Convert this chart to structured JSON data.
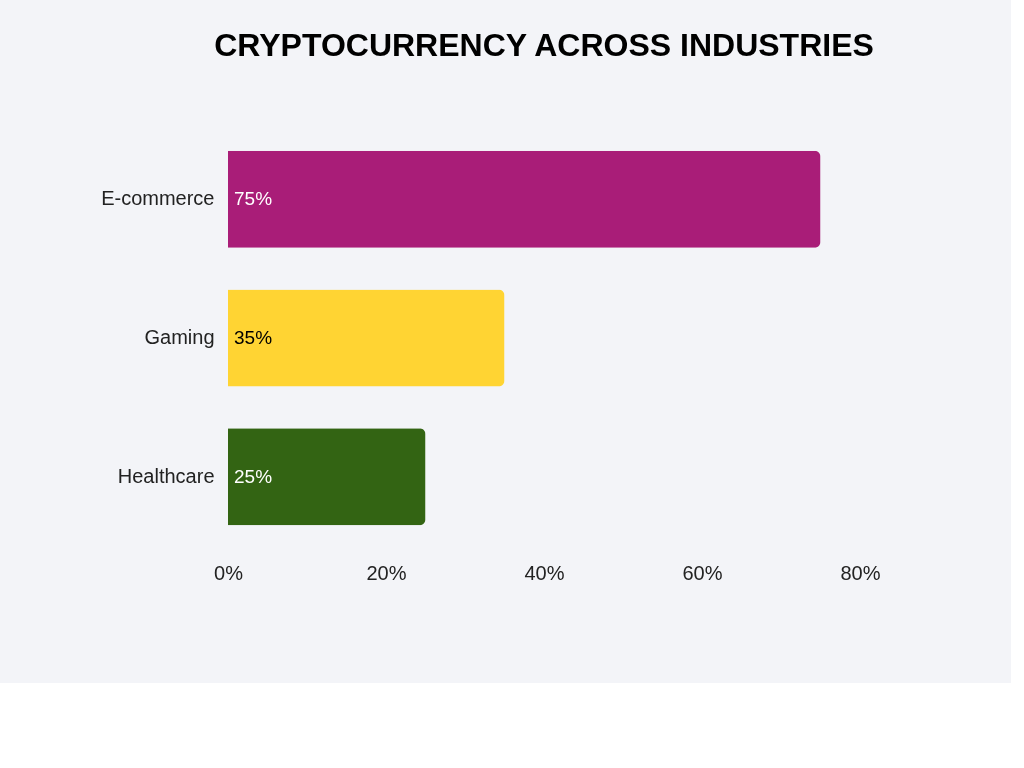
{
  "chart_data": {
    "type": "bar",
    "orientation": "horizontal",
    "title": "CRYPTOCURRENCY ACROSS INDUSTRIES",
    "categories": [
      "E-commerce",
      "Gaming",
      "Healthcare"
    ],
    "values": [
      75,
      35,
      25
    ],
    "colors": [
      "#a91d78",
      "#ffd433",
      "#336413"
    ],
    "value_labels": [
      "75%",
      "35%",
      "25%"
    ],
    "xlim": [
      0,
      80
    ],
    "xticks": [
      {
        "value": 0,
        "label": "0%"
      },
      {
        "value": 20,
        "label": "20%"
      },
      {
        "value": 40,
        "label": "40%"
      },
      {
        "value": 60,
        "label": "60%"
      },
      {
        "value": 80,
        "label": "80%"
      }
    ],
    "grid": false,
    "legend": false
  }
}
